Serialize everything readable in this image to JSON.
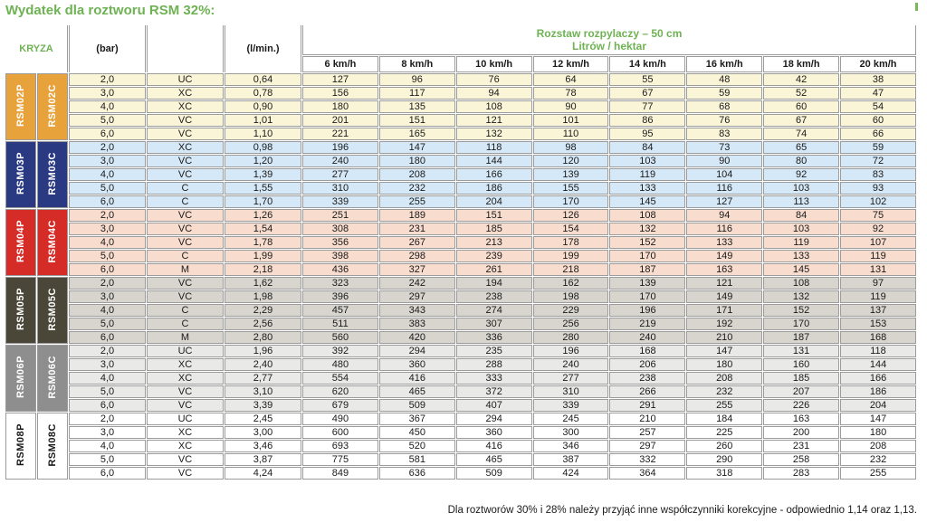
{
  "title": "Wydatek dla roztworu RSM 32%:",
  "accent_green": "#6fb254",
  "border_gray": "#9c9c9c",
  "header": {
    "kryza": "KRYZA",
    "bar": "(bar)",
    "nozzle_type": "",
    "lmin": "(l/min.)",
    "span_line1": "Rozstaw rozpylaczy – 50 cm",
    "span_line2": "Litrów / hektar",
    "speeds": [
      "6 km/h",
      "8 km/h",
      "10 km/h",
      "12 km/h",
      "14 km/h",
      "16 km/h",
      "18 km/h",
      "20 km/h"
    ]
  },
  "footer": "Dla roztworów 30% i 28% należy przyjąć inne współczynniki korekcyjne - odpowiednio 1,14 oraz 1,13.",
  "groups": [
    {
      "p_label": "RSM02P",
      "c_label": "RSM02C",
      "label_bg": "#e8a23c",
      "label_fg": "#ffffff",
      "row_bg": "#fbf5d7",
      "rows": [
        {
          "bar": "2,0",
          "type": "UC",
          "lmin": "0,64",
          "values": [
            "127",
            "96",
            "76",
            "64",
            "55",
            "48",
            "42",
            "38"
          ]
        },
        {
          "bar": "3,0",
          "type": "XC",
          "lmin": "0,78",
          "values": [
            "156",
            "117",
            "94",
            "78",
            "67",
            "59",
            "52",
            "47"
          ]
        },
        {
          "bar": "4,0",
          "type": "XC",
          "lmin": "0,90",
          "values": [
            "180",
            "135",
            "108",
            "90",
            "77",
            "68",
            "60",
            "54"
          ]
        },
        {
          "bar": "5,0",
          "type": "VC",
          "lmin": "1,01",
          "values": [
            "201",
            "151",
            "121",
            "101",
            "86",
            "76",
            "67",
            "60"
          ]
        },
        {
          "bar": "6,0",
          "type": "VC",
          "lmin": "1,10",
          "values": [
            "221",
            "165",
            "132",
            "110",
            "95",
            "83",
            "74",
            "66"
          ]
        }
      ]
    },
    {
      "p_label": "RSM03P",
      "c_label": "RSM03C",
      "label_bg": "#293a83",
      "label_fg": "#ffffff",
      "row_bg": "#d5e8f7",
      "rows": [
        {
          "bar": "2,0",
          "type": "XC",
          "lmin": "0,98",
          "values": [
            "196",
            "147",
            "118",
            "98",
            "84",
            "73",
            "65",
            "59"
          ]
        },
        {
          "bar": "3,0",
          "type": "VC",
          "lmin": "1,20",
          "values": [
            "240",
            "180",
            "144",
            "120",
            "103",
            "90",
            "80",
            "72"
          ]
        },
        {
          "bar": "4,0",
          "type": "VC",
          "lmin": "1,39",
          "values": [
            "277",
            "208",
            "166",
            "139",
            "119",
            "104",
            "92",
            "83"
          ]
        },
        {
          "bar": "5,0",
          "type": "C",
          "lmin": "1,55",
          "values": [
            "310",
            "232",
            "186",
            "155",
            "133",
            "116",
            "103",
            "93"
          ]
        },
        {
          "bar": "6,0",
          "type": "C",
          "lmin": "1,70",
          "values": [
            "339",
            "255",
            "204",
            "170",
            "145",
            "127",
            "113",
            "102"
          ]
        }
      ]
    },
    {
      "p_label": "RSM04P",
      "c_label": "RSM04C",
      "label_bg": "#d62c27",
      "label_fg": "#ffffff",
      "row_bg": "#f8dcce",
      "rows": [
        {
          "bar": "2,0",
          "type": "VC",
          "lmin": "1,26",
          "values": [
            "251",
            "189",
            "151",
            "126",
            "108",
            "94",
            "84",
            "75"
          ]
        },
        {
          "bar": "3,0",
          "type": "VC",
          "lmin": "1,54",
          "values": [
            "308",
            "231",
            "185",
            "154",
            "132",
            "116",
            "103",
            "92"
          ]
        },
        {
          "bar": "4,0",
          "type": "VC",
          "lmin": "1,78",
          "values": [
            "356",
            "267",
            "213",
            "178",
            "152",
            "133",
            "119",
            "107"
          ]
        },
        {
          "bar": "5,0",
          "type": "C",
          "lmin": "1,99",
          "values": [
            "398",
            "298",
            "239",
            "199",
            "170",
            "149",
            "133",
            "119"
          ]
        },
        {
          "bar": "6,0",
          "type": "M",
          "lmin": "2,18",
          "values": [
            "436",
            "327",
            "261",
            "218",
            "187",
            "163",
            "145",
            "131"
          ]
        }
      ]
    },
    {
      "p_label": "RSM05P",
      "c_label": "RSM05C",
      "label_bg": "#4a4638",
      "label_fg": "#ffffff",
      "row_bg": "#d7d5ce",
      "rows": [
        {
          "bar": "2,0",
          "type": "VC",
          "lmin": "1,62",
          "values": [
            "323",
            "242",
            "194",
            "162",
            "139",
            "121",
            "108",
            "97"
          ]
        },
        {
          "bar": "3,0",
          "type": "VC",
          "lmin": "1,98",
          "values": [
            "396",
            "297",
            "238",
            "198",
            "170",
            "149",
            "132",
            "119"
          ]
        },
        {
          "bar": "4,0",
          "type": "C",
          "lmin": "2,29",
          "values": [
            "457",
            "343",
            "274",
            "229",
            "196",
            "171",
            "152",
            "137"
          ]
        },
        {
          "bar": "5,0",
          "type": "C",
          "lmin": "2,56",
          "values": [
            "511",
            "383",
            "307",
            "256",
            "219",
            "192",
            "170",
            "153"
          ]
        },
        {
          "bar": "6,0",
          "type": "M",
          "lmin": "2,80",
          "values": [
            "560",
            "420",
            "336",
            "280",
            "240",
            "210",
            "187",
            "168"
          ]
        }
      ]
    },
    {
      "p_label": "RSM06P",
      "c_label": "RSM06C",
      "label_bg": "#8e8e8e",
      "label_fg": "#ffffff",
      "row_bg": "#e9e9e8",
      "rows": [
        {
          "bar": "2,0",
          "type": "UC",
          "lmin": "1,96",
          "values": [
            "392",
            "294",
            "235",
            "196",
            "168",
            "147",
            "131",
            "118"
          ]
        },
        {
          "bar": "3,0",
          "type": "XC",
          "lmin": "2,40",
          "values": [
            "480",
            "360",
            "288",
            "240",
            "206",
            "180",
            "160",
            "144"
          ]
        },
        {
          "bar": "4,0",
          "type": "XC",
          "lmin": "2,77",
          "values": [
            "554",
            "416",
            "333",
            "277",
            "238",
            "208",
            "185",
            "166"
          ]
        },
        {
          "bar": "5,0",
          "type": "VC",
          "lmin": "3,10",
          "values": [
            "620",
            "465",
            "372",
            "310",
            "266",
            "232",
            "207",
            "186"
          ]
        },
        {
          "bar": "6,0",
          "type": "VC",
          "lmin": "3,39",
          "values": [
            "679",
            "509",
            "407",
            "339",
            "291",
            "255",
            "226",
            "204"
          ]
        }
      ]
    },
    {
      "p_label": "RSM08P",
      "c_label": "RSM08C",
      "label_bg": "#ffffff",
      "label_fg": "#1a1a1a",
      "row_bg": "#ffffff",
      "rows": [
        {
          "bar": "2,0",
          "type": "UC",
          "lmin": "2,45",
          "values": [
            "490",
            "367",
            "294",
            "245",
            "210",
            "184",
            "163",
            "147"
          ]
        },
        {
          "bar": "3,0",
          "type": "XC",
          "lmin": "3,00",
          "values": [
            "600",
            "450",
            "360",
            "300",
            "257",
            "225",
            "200",
            "180"
          ]
        },
        {
          "bar": "4,0",
          "type": "XC",
          "lmin": "3,46",
          "values": [
            "693",
            "520",
            "416",
            "346",
            "297",
            "260",
            "231",
            "208"
          ]
        },
        {
          "bar": "5,0",
          "type": "VC",
          "lmin": "3,87",
          "values": [
            "775",
            "581",
            "465",
            "387",
            "332",
            "290",
            "258",
            "232"
          ]
        },
        {
          "bar": "6,0",
          "type": "VC",
          "lmin": "4,24",
          "values": [
            "849",
            "636",
            "509",
            "424",
            "364",
            "318",
            "283",
            "255"
          ]
        }
      ]
    }
  ]
}
